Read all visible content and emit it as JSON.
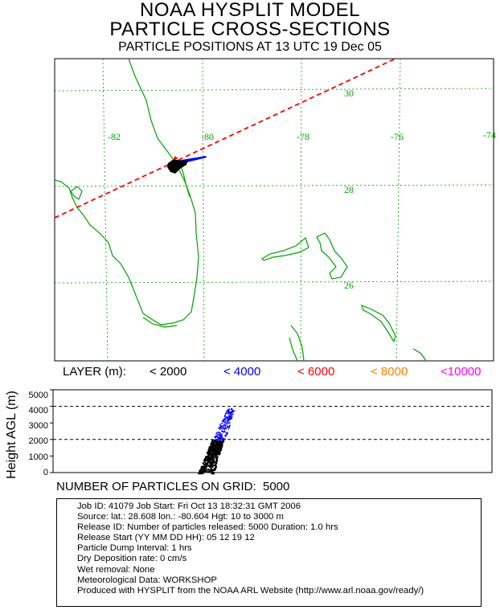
{
  "header": {
    "title": "NOAA HYSPLIT MODEL",
    "subtitle": "PARTICLE CROSS-SECTIONS",
    "timestamp_line": "PARTICLE POSITIONS AT 13 UTC 19 Dec 05"
  },
  "map": {
    "longitude_labels": [
      "-82",
      "-80",
      "-78",
      "-76",
      "-74"
    ],
    "latitude_labels": [
      "30",
      "28",
      "26"
    ],
    "colors": {
      "coastline": "#00a000",
      "grid": "#00a000",
      "trajectory": "#ff0000",
      "frame": "#000000"
    }
  },
  "legend": {
    "title": "LAYER (m):",
    "items": [
      {
        "label": "< 2000",
        "color": "#000000"
      },
      {
        "label": "< 4000",
        "color": "#0000ff"
      },
      {
        "label": "< 6000",
        "color": "#ff0000"
      },
      {
        "label": "< 8000",
        "color": "#ff8000"
      },
      {
        "label": "<10000",
        "color": "#ff00ff"
      }
    ]
  },
  "chart_data": {
    "type": "scatter",
    "ylabel": "Height AGL (m)",
    "ylim": [
      0,
      5000
    ],
    "yticks": [
      "5000",
      "4000",
      "3000",
      "2000",
      "1000",
      "0"
    ],
    "reference_lines": [
      2000,
      4000
    ],
    "series": [
      {
        "name": "< 2000",
        "color": "#000000",
        "y_range": [
          0,
          2000
        ]
      },
      {
        "name": "< 4000",
        "color": "#0000ff",
        "y_range": [
          2000,
          4000
        ]
      }
    ]
  },
  "particles": {
    "label": "NUMBER OF PARTICLES ON GRID:",
    "count": "5000"
  },
  "info_box": {
    "job_line": "Job ID: 41079        Job Start: Fri Oct 13 18:32:31 GMT 2006",
    "source_line": "Source:    lat.: 28.608     lon.: -80.604       Hgt: 10 to 3000 m",
    "release_id_line": "Release ID:   Number of particles released: 5000    Duration: 1.0 hrs",
    "release_start_line": "Release Start (YY MM DD HH): 05  12  19  12",
    "dump_line": "Particle Dump Interval: 1 hrs",
    "dry_dep_line": "Dry Deposition rate: 0 cm/s",
    "wet_line": "Wet removal:    None",
    "met_line": "Meteorological Data: WORKSHOP",
    "produced_line": "Produced with HYSPLIT from the NOAA ARL Website (http://www.arl.noaa.gov/ready/)"
  }
}
